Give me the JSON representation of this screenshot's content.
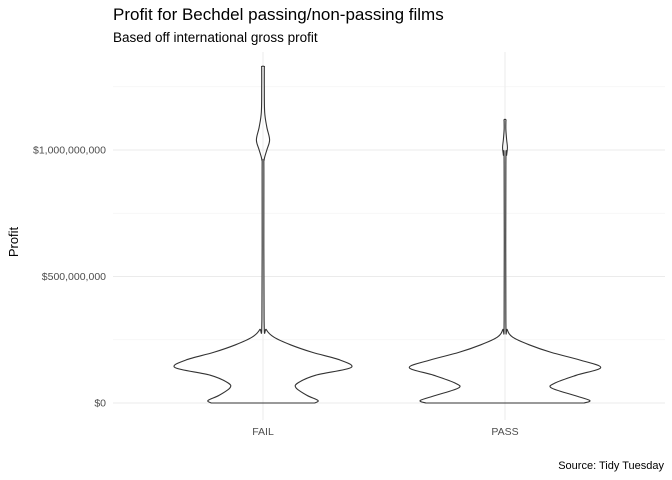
{
  "chart_data": {
    "type": "violin",
    "title": "Profit for Bechdel passing/non-passing films",
    "subtitle": "Based off international gross profit",
    "caption": "Source: Tidy Tuesday",
    "xlabel": "",
    "ylabel": "Profit",
    "categories": [
      "FAIL",
      "PASS"
    ],
    "y_ticks": [
      {
        "value": 0,
        "label": "$0"
      },
      {
        "value": 500000000,
        "label": "$500,000,000"
      },
      {
        "value": 1000000000,
        "label": "$1,000,000,000"
      }
    ],
    "ylim": [
      -30000000,
      1390000000
    ],
    "grid": true,
    "violins": [
      {
        "category": "FAIL",
        "min": 0,
        "max": 1330000000,
        "relative_density": [
          [
            0,
            0.47
          ],
          [
            10000000,
            0.5
          ],
          [
            30000000,
            0.4
          ],
          [
            60000000,
            0.3
          ],
          [
            80000000,
            0.32
          ],
          [
            110000000,
            0.48
          ],
          [
            140000000,
            0.8
          ],
          [
            170000000,
            0.7
          ],
          [
            200000000,
            0.45
          ],
          [
            230000000,
            0.25
          ],
          [
            260000000,
            0.1
          ],
          [
            290000000,
            0.03
          ],
          [
            330000000,
            0.01
          ],
          [
            900000000,
            0.008
          ],
          [
            960000000,
            0.01
          ],
          [
            1000000000,
            0.035
          ],
          [
            1040000000,
            0.06
          ],
          [
            1090000000,
            0.035
          ],
          [
            1150000000,
            0.015
          ],
          [
            1250000000,
            0.012
          ],
          [
            1320000000,
            0.012
          ],
          [
            1330000000,
            0.012
          ]
        ]
      },
      {
        "category": "PASS",
        "min": 0,
        "max": 1120000000,
        "relative_density": [
          [
            0,
            0.72
          ],
          [
            10000000,
            0.77
          ],
          [
            30000000,
            0.63
          ],
          [
            60000000,
            0.42
          ],
          [
            80000000,
            0.46
          ],
          [
            110000000,
            0.65
          ],
          [
            140000000,
            0.87
          ],
          [
            170000000,
            0.68
          ],
          [
            200000000,
            0.42
          ],
          [
            230000000,
            0.22
          ],
          [
            260000000,
            0.07
          ],
          [
            290000000,
            0.02
          ],
          [
            330000000,
            0.008
          ],
          [
            940000000,
            0.008
          ],
          [
            980000000,
            0.015
          ],
          [
            1010000000,
            0.022
          ],
          [
            1040000000,
            0.015
          ],
          [
            1080000000,
            0.008
          ],
          [
            1110000000,
            0.008
          ],
          [
            1120000000,
            0.008
          ]
        ]
      }
    ]
  }
}
